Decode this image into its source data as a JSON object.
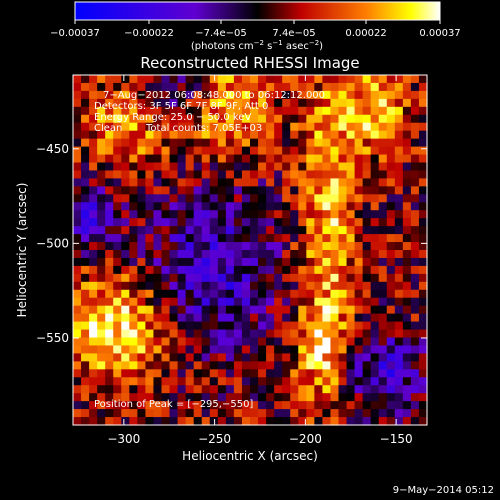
{
  "chart_data": {
    "type": "heatmap",
    "title": "Reconstructed RHESSI Image",
    "xlabel": "Heliocentric X (arcsec)",
    "ylabel": "Heliocentric Y (arcsec)",
    "xlim": [
      -328,
      -133
    ],
    "ylim": [
      -596,
      -411
    ],
    "x_ticks": [
      -300,
      -250,
      -200,
      -150
    ],
    "x_tick_labels": [
      "−300",
      "−250",
      "−200",
      "−150"
    ],
    "y_ticks": [
      -450,
      -500,
      -550
    ],
    "y_tick_labels": [
      "−450",
      "−500",
      "−550"
    ],
    "colorbar": {
      "range": [
        -0.00037,
        0.00037
      ],
      "ticks": [
        -0.00037,
        -0.00022,
        -7.4e-05,
        7.4e-05,
        0.00022,
        0.00037
      ],
      "tick_labels": [
        "−0.00037",
        "−0.00022",
        "−7.4e−05",
        "7.4e−05",
        "0.00022",
        "0.00037"
      ],
      "units_prefix": "(photons cm",
      "units_exp1": "−2",
      "units_mid1": " s",
      "units_exp2": "−1",
      "units_mid2": " asec",
      "units_exp3": "−2",
      "units_suffix": ")",
      "colors": [
        "#0000ff",
        "#6000d0",
        "#000000",
        "#c00000",
        "#ff8000",
        "#ffff00",
        "#ffffff"
      ]
    },
    "info": {
      "time_range": "7−Aug−2012 06:08:48.000 to 06:12:12.000",
      "detectors": "Detectors: 3F 5F 6F 7F 8F 9F, Att 0",
      "energy": "Energy Range: 25.0 − 50.0 keV",
      "method": "Clean",
      "total_counts": "Total counts: 7.05E+03",
      "peak": "Position of Peak = [−295,−550]"
    },
    "peak_position": [
      -295,
      -550
    ],
    "grid": false,
    "legend": "none"
  },
  "footer": {
    "date": "9−May−2014 05:12"
  }
}
